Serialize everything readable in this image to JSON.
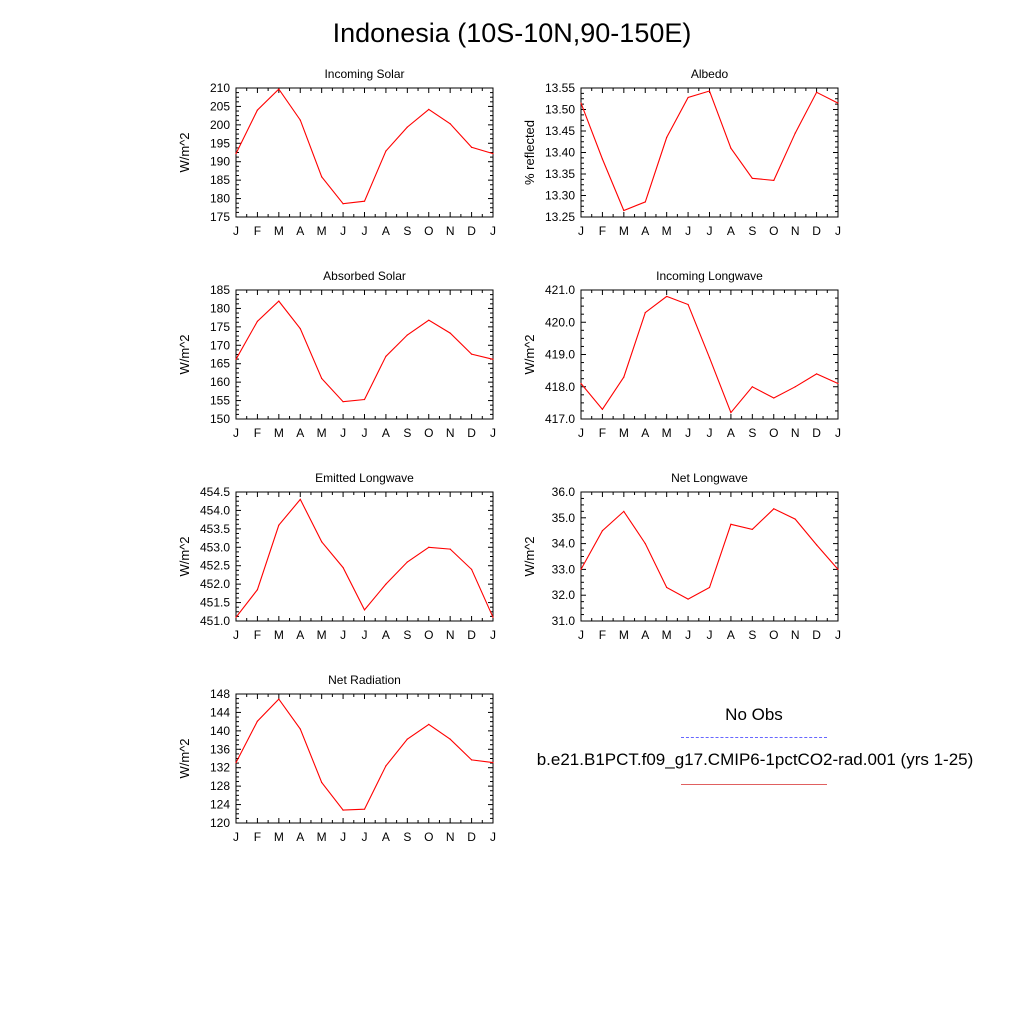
{
  "title": "Indonesia (10S-10N,90-150E)",
  "legend": {
    "obs_label": "No Obs",
    "obs_color": "#6666ff",
    "model_label": "b.e21.B1PCT.f09_g17.CMIP6-1pctCO2-rad.001 (yrs 1-25)",
    "model_color": "#ff0000"
  },
  "chart_data": [
    {
      "type": "line",
      "title": "Incoming Solar",
      "ylabel": "W/m^2",
      "categories": [
        "J",
        "F",
        "M",
        "A",
        "M",
        "J",
        "J",
        "A",
        "S",
        "O",
        "N",
        "D",
        "J"
      ],
      "ylim": [
        175,
        210
      ],
      "yticks": [
        "175",
        "180",
        "185",
        "190",
        "195",
        "200",
        "205",
        "210"
      ],
      "series": [
        {
          "values": [
            192.2,
            204.0,
            209.7,
            201.3,
            185.9,
            178.6,
            179.3,
            192.9,
            199.4,
            204.2,
            200.3,
            193.9,
            192.2
          ]
        }
      ]
    },
    {
      "type": "line",
      "title": "Albedo",
      "ylabel": "% reflected",
      "categories": [
        "J",
        "F",
        "M",
        "A",
        "M",
        "J",
        "J",
        "A",
        "S",
        "O",
        "N",
        "D",
        "J"
      ],
      "ylim": [
        13.25,
        13.55
      ],
      "yticks": [
        "13.25",
        "13.30",
        "13.35",
        "13.40",
        "13.45",
        "13.50",
        "13.55"
      ],
      "series": [
        {
          "values": [
            13.515,
            13.385,
            13.265,
            13.285,
            13.435,
            13.528,
            13.543,
            13.41,
            13.34,
            13.335,
            13.445,
            13.54,
            13.515
          ]
        }
      ]
    },
    {
      "type": "line",
      "title": "Absorbed Solar",
      "ylabel": "W/m^2",
      "categories": [
        "J",
        "F",
        "M",
        "A",
        "M",
        "J",
        "J",
        "A",
        "S",
        "O",
        "N",
        "D",
        "J"
      ],
      "ylim": [
        150,
        185
      ],
      "yticks": [
        "150",
        "155",
        "160",
        "165",
        "170",
        "175",
        "180",
        "185"
      ],
      "series": [
        {
          "values": [
            166.2,
            176.5,
            182.0,
            174.5,
            161.0,
            154.7,
            155.3,
            167.0,
            172.8,
            176.8,
            173.3,
            167.6,
            166.2
          ]
        }
      ]
    },
    {
      "type": "line",
      "title": "Incoming Longwave",
      "ylabel": "W/m^2",
      "categories": [
        "J",
        "F",
        "M",
        "A",
        "M",
        "J",
        "J",
        "A",
        "S",
        "O",
        "N",
        "D",
        "J"
      ],
      "ylim": [
        417.0,
        421.0
      ],
      "yticks": [
        "417.0",
        "418.0",
        "419.0",
        "420.0",
        "421.0"
      ],
      "series": [
        {
          "values": [
            418.1,
            417.3,
            418.3,
            420.3,
            420.8,
            420.55,
            418.9,
            417.2,
            418.0,
            417.65,
            418.0,
            418.4,
            418.1
          ]
        }
      ]
    },
    {
      "type": "line",
      "title": "Emitted Longwave",
      "ylabel": "W/m^2",
      "categories": [
        "J",
        "F",
        "M",
        "A",
        "M",
        "J",
        "J",
        "A",
        "S",
        "O",
        "N",
        "D",
        "J"
      ],
      "ylim": [
        451.0,
        454.5
      ],
      "yticks": [
        "451.0",
        "451.5",
        "452.0",
        "452.5",
        "453.0",
        "453.5",
        "454.0",
        "454.5"
      ],
      "series": [
        {
          "values": [
            451.1,
            451.85,
            453.6,
            454.3,
            453.15,
            452.45,
            451.3,
            452.0,
            452.6,
            453.0,
            452.95,
            452.4,
            451.1
          ]
        }
      ]
    },
    {
      "type": "line",
      "title": "Net Longwave",
      "ylabel": "W/m^2",
      "categories": [
        "J",
        "F",
        "M",
        "A",
        "M",
        "J",
        "J",
        "A",
        "S",
        "O",
        "N",
        "D",
        "J"
      ],
      "ylim": [
        31.0,
        36.0
      ],
      "yticks": [
        "31.0",
        "32.0",
        "33.0",
        "34.0",
        "35.0",
        "36.0"
      ],
      "series": [
        {
          "values": [
            33.0,
            34.5,
            35.25,
            34.0,
            32.3,
            31.85,
            32.3,
            34.75,
            34.55,
            35.35,
            34.95,
            33.95,
            33.0
          ]
        }
      ]
    },
    {
      "type": "line",
      "title": "Net Radiation",
      "ylabel": "W/m^2",
      "categories": [
        "J",
        "F",
        "M",
        "A",
        "M",
        "J",
        "J",
        "A",
        "S",
        "O",
        "N",
        "D",
        "J"
      ],
      "ylim": [
        120,
        148
      ],
      "yticks": [
        "120",
        "124",
        "128",
        "132",
        "136",
        "140",
        "144",
        "148"
      ],
      "series": [
        {
          "values": [
            133.1,
            142.1,
            146.9,
            140.4,
            128.8,
            122.8,
            123.0,
            132.4,
            138.2,
            141.4,
            138.2,
            133.7,
            133.1
          ]
        }
      ]
    }
  ]
}
